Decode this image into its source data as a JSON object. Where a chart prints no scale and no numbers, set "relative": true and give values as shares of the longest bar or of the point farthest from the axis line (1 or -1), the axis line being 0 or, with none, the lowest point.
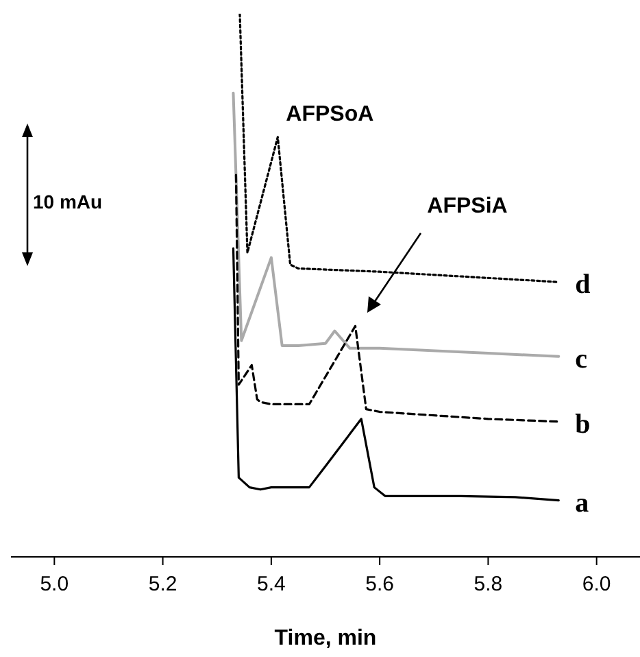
{
  "chart_data": {
    "type": "line",
    "relative": true,
    "xlabel": "Time, min",
    "xlim": [
      4.92,
      6.08
    ],
    "xticks": [
      {
        "value": 5,
        "label": "5.0"
      },
      {
        "value": 5.2,
        "label": "5.2"
      },
      {
        "value": 5.4,
        "label": "5.4"
      },
      {
        "value": 5.6,
        "label": "5.6"
      },
      {
        "value": 5.8,
        "label": "5.8"
      },
      {
        "value": 6,
        "label": "6.0"
      }
    ],
    "grid": false,
    "legend": false,
    "marker": "none",
    "series": [
      {
        "name": "a",
        "color": "#000000",
        "line_style": "solid",
        "x": [
          5.33,
          5.34,
          5.36,
          5.38,
          5.4,
          5.47,
          5.5,
          5.566,
          5.59,
          5.61,
          5.75,
          5.85,
          5.93
        ],
        "values": [
          0.568,
          0.146,
          0.128,
          0.124,
          0.128,
          0.128,
          0.167,
          0.254,
          0.128,
          0.112,
          0.112,
          0.11,
          0.104
        ]
      },
      {
        "name": "b",
        "color": "#000000",
        "line_style": "dashed",
        "x": [
          5.335,
          5.34,
          5.364,
          5.374,
          5.38,
          5.4,
          5.47,
          5.555,
          5.575,
          5.6,
          5.8,
          5.93
        ],
        "values": [
          0.703,
          0.317,
          0.353,
          0.29,
          0.285,
          0.281,
          0.281,
          0.425,
          0.272,
          0.267,
          0.254,
          0.249
        ]
      },
      {
        "name": "c",
        "color": "#aaaaaa",
        "line_style": "solid",
        "x": [
          5.33,
          5.345,
          5.4,
          5.42,
          5.45,
          5.5,
          5.517,
          5.545,
          5.6,
          5.8,
          5.93
        ],
        "values": [
          0.854,
          0.398,
          0.551,
          0.389,
          0.389,
          0.393,
          0.416,
          0.384,
          0.384,
          0.375,
          0.369
        ]
      },
      {
        "name": "d",
        "color": "#000000",
        "line_style": "dotted",
        "x": [
          5.342,
          5.356,
          5.412,
          5.435,
          5.45,
          5.6,
          5.93
        ],
        "values": [
          1.0,
          0.56,
          0.773,
          0.538,
          0.531,
          0.525,
          0.506
        ]
      }
    ],
    "annotations": [
      "10 mAu",
      {
        "text": "AFPSoA",
        "x": 5.412,
        "y": 0.773
      },
      "AFPSiA"
    ]
  }
}
